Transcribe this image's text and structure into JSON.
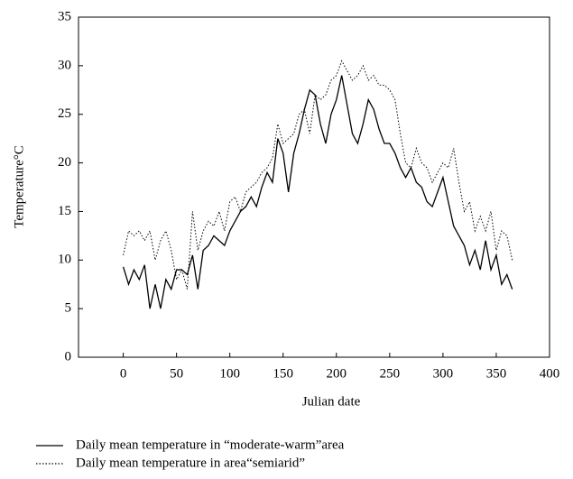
{
  "chart_data": {
    "type": "line",
    "x_label": "Julian date",
    "y_label": "Temperature°C",
    "x": [
      0,
      5,
      10,
      15,
      20,
      25,
      30,
      35,
      40,
      45,
      50,
      55,
      60,
      65,
      70,
      75,
      80,
      85,
      90,
      95,
      100,
      105,
      110,
      115,
      120,
      125,
      130,
      135,
      140,
      145,
      150,
      155,
      160,
      165,
      170,
      175,
      180,
      185,
      190,
      195,
      200,
      205,
      210,
      215,
      220,
      225,
      230,
      235,
      240,
      245,
      250,
      255,
      260,
      265,
      270,
      275,
      280,
      285,
      290,
      295,
      300,
      305,
      310,
      315,
      320,
      325,
      330,
      335,
      340,
      345,
      350,
      355,
      360,
      365
    ],
    "series": [
      {
        "name": "Daily mean temperature in “moderate-warm”area",
        "color": "#000000",
        "style": "solid",
        "values": [
          9.3,
          7.5,
          9,
          8,
          9.5,
          5,
          7.5,
          5,
          8,
          7,
          9,
          9,
          8.5,
          10.5,
          7,
          11,
          11.5,
          12.5,
          12,
          11.5,
          13,
          14,
          15,
          15.5,
          16.5,
          15.5,
          17.5,
          19,
          18,
          22.5,
          21,
          17,
          21,
          23,
          25.5,
          27.5,
          27,
          24,
          22,
          25,
          26.5,
          29,
          26,
          23,
          22,
          24,
          26.5,
          25.5,
          23.5,
          22,
          22,
          21,
          19.5,
          18.5,
          19.5,
          18,
          17.5,
          16,
          15.5,
          17,
          18.5,
          16,
          13.5,
          12.5,
          11.5,
          9.5,
          11,
          9,
          12,
          9,
          10.5,
          7.5,
          8.5,
          7
        ]
      },
      {
        "name": "Daily mean temperature in area“semiarid”",
        "color": "#000000",
        "style": "dotted",
        "values": [
          10.5,
          13,
          12.5,
          13,
          12,
          13,
          10,
          12,
          13,
          11,
          8,
          9,
          7,
          15,
          11,
          13,
          14,
          13.5,
          15,
          13,
          16,
          16.5,
          15,
          17,
          17.5,
          18,
          19,
          19.5,
          20.5,
          24,
          22,
          22.5,
          23,
          25,
          25.5,
          23,
          27,
          26.5,
          27,
          28.5,
          29,
          30.5,
          29.5,
          28.5,
          29,
          30,
          28.5,
          29,
          28,
          28,
          27.5,
          26.5,
          23,
          20,
          19.5,
          21.5,
          20,
          19.5,
          18,
          19,
          20,
          19.5,
          21.5,
          18,
          15,
          16,
          13,
          14.5,
          13,
          15,
          11,
          13,
          12.5,
          10
        ]
      }
    ],
    "xlim": [
      -42,
      400
    ],
    "xticks": [
      0,
      50,
      100,
      150,
      200,
      250,
      300,
      350,
      400
    ],
    "ylim": [
      0,
      35
    ],
    "yticks": [
      0,
      5,
      10,
      15,
      20,
      25,
      30,
      35
    ],
    "grid": false
  }
}
